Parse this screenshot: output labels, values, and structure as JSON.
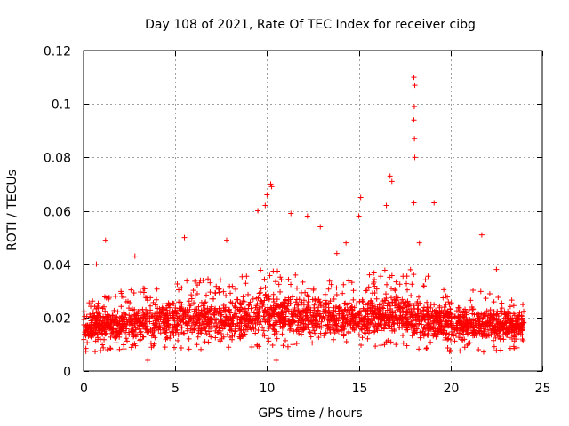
{
  "chart_data": {
    "type": "scatter",
    "title": "Day 108 of 2021, Rate Of TEC Index for receiver cibg",
    "xlabel": "GPS time / hours",
    "ylabel": "ROTI / TECUs",
    "xlim": [
      0,
      25
    ],
    "ylim": [
      0,
      0.12
    ],
    "xticks": [
      0,
      5,
      10,
      15,
      20,
      25
    ],
    "yticks": [
      0,
      0.02,
      0.04,
      0.06,
      0.08,
      0.1,
      0.12
    ],
    "xtick_labels": [
      "0",
      "5",
      "10",
      "15",
      "20",
      "25"
    ],
    "ytick_labels": [
      "0",
      "0.02",
      "0.04",
      "0.06",
      "0.08",
      "0.1",
      "0.12"
    ],
    "grid": true,
    "marker": "+",
    "color": "#ff0000",
    "series": [
      {
        "name": "ROTI",
        "bulk_envelope": {
          "x_range": [
            0,
            24
          ],
          "hours": [
            0,
            2,
            4,
            6,
            8,
            10,
            12,
            14,
            16,
            18,
            20,
            22,
            24
          ],
          "min": [
            0.007,
            0.007,
            0.008,
            0.008,
            0.008,
            0.008,
            0.009,
            0.009,
            0.008,
            0.008,
            0.007,
            0.007,
            0.007
          ],
          "max": [
            0.025,
            0.03,
            0.032,
            0.035,
            0.034,
            0.04,
            0.036,
            0.034,
            0.038,
            0.038,
            0.032,
            0.03,
            0.026
          ]
        },
        "notable_points": [
          {
            "x": 18.0,
            "y": 0.11
          },
          {
            "x": 18.05,
            "y": 0.107
          },
          {
            "x": 18.02,
            "y": 0.099
          },
          {
            "x": 18.0,
            "y": 0.094
          },
          {
            "x": 18.03,
            "y": 0.087
          },
          {
            "x": 18.05,
            "y": 0.08
          },
          {
            "x": 16.7,
            "y": 0.073
          },
          {
            "x": 16.8,
            "y": 0.071
          },
          {
            "x": 10.2,
            "y": 0.07
          },
          {
            "x": 10.25,
            "y": 0.069
          },
          {
            "x": 10.0,
            "y": 0.066
          },
          {
            "x": 9.9,
            "y": 0.062
          },
          {
            "x": 18.0,
            "y": 0.063
          },
          {
            "x": 15.1,
            "y": 0.065
          },
          {
            "x": 11.3,
            "y": 0.059
          },
          {
            "x": 19.1,
            "y": 0.063
          },
          {
            "x": 12.2,
            "y": 0.058
          },
          {
            "x": 9.5,
            "y": 0.06
          },
          {
            "x": 16.5,
            "y": 0.062
          },
          {
            "x": 15.0,
            "y": 0.058
          },
          {
            "x": 12.9,
            "y": 0.054
          },
          {
            "x": 1.2,
            "y": 0.049
          },
          {
            "x": 5.5,
            "y": 0.05
          },
          {
            "x": 7.8,
            "y": 0.049
          },
          {
            "x": 21.7,
            "y": 0.051
          },
          {
            "x": 14.3,
            "y": 0.048
          },
          {
            "x": 18.3,
            "y": 0.048
          },
          {
            "x": 13.8,
            "y": 0.044
          },
          {
            "x": 0.7,
            "y": 0.04
          },
          {
            "x": 2.8,
            "y": 0.043
          },
          {
            "x": 22.5,
            "y": 0.038
          },
          {
            "x": 10.5,
            "y": 0.004
          },
          {
            "x": 3.5,
            "y": 0.004
          }
        ]
      }
    ]
  }
}
